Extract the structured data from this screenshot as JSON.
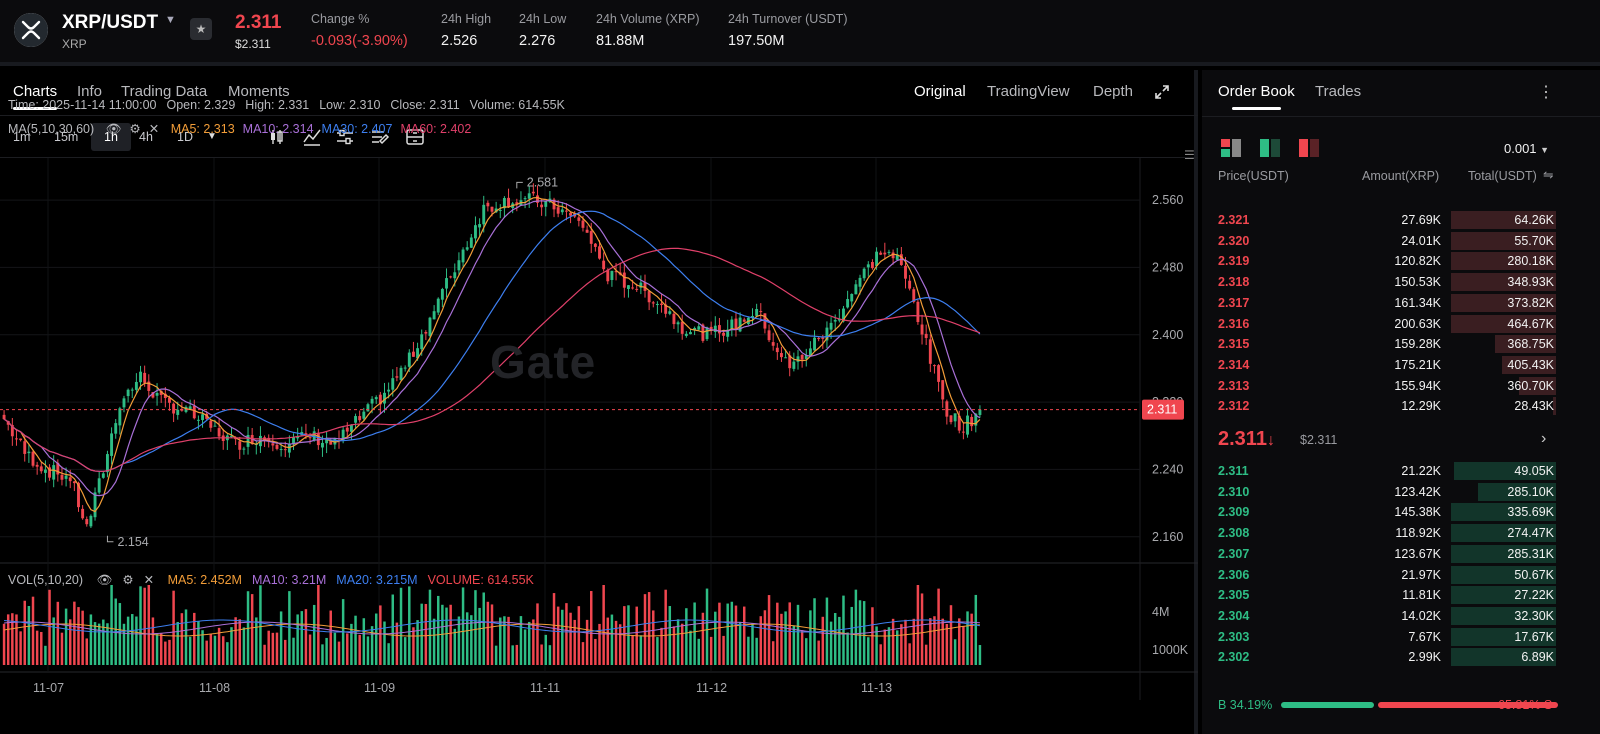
{
  "header": {
    "pair": "XRP/USDT",
    "base": "XRP",
    "last_price": "2.311",
    "last_price_usd": "$2.311",
    "stats": [
      {
        "label": "Change %",
        "value": "-0.093(-3.90%)",
        "red": true
      },
      {
        "label": "24h High",
        "value": "2.526"
      },
      {
        "label": "24h Low",
        "value": "2.276"
      },
      {
        "label": "24h Volume (XRP)",
        "value": "81.88M"
      },
      {
        "label": "24h Turnover (USDT)",
        "value": "197.50M"
      }
    ]
  },
  "tabs": [
    "Charts",
    "Info",
    "Trading Data",
    "Moments"
  ],
  "view_tabs": [
    "Original",
    "TradingView",
    "Depth"
  ],
  "intervals": [
    "1m",
    "15m",
    "1h",
    "4h",
    "1D"
  ],
  "info_line": {
    "time": "Time: 2025-11-14 11:00:00",
    "open": "Open: 2.329",
    "high": "High: 2.331",
    "low": "Low: 2.310",
    "close": "Close: 2.311",
    "volume": "Volume: 614.55K"
  },
  "ma_line": {
    "label": "MA(5,10,30,60)",
    "ma5": "MA5: 2.313",
    "ma10": "MA10: 2.314",
    "ma30": "MA30: 2.407",
    "ma60": "MA60: 2.402"
  },
  "vol_line": {
    "label": "VOL(5,10,20)",
    "ma5": "MA5: 2.452M",
    "ma10": "MA10: 3.21M",
    "ma20": "MA20: 3.215M",
    "volume": "VOLUME: 614.55K"
  },
  "watermark": "Gate",
  "colors": {
    "up": "#2ebd85",
    "down": "#f0464f",
    "ma5": "#f29d38",
    "ma10": "#a970d8",
    "ma30": "#3d7ff0",
    "ma60": "#e0406a"
  },
  "chart_data": {
    "type": "candlestick",
    "y_ticks": [
      "2.560",
      "2.480",
      "2.400",
      "2.320",
      "2.240",
      "2.160"
    ],
    "ylim": [
      2.13,
      2.61
    ],
    "x_ticks": [
      "11-07",
      "11-08",
      "11-09",
      "11-11",
      "11-12",
      "11-13"
    ],
    "vol_ticks": [
      "4M",
      "1000K"
    ],
    "current_price_label": "2.311",
    "current_price": 2.311,
    "high_marker": "2.581",
    "high_value": 2.581,
    "low_marker": "2.154",
    "low_value": 2.154,
    "price_anchors": [
      [
        0,
        2.3
      ],
      [
        5,
        2.26
      ],
      [
        10,
        2.24
      ],
      [
        16,
        2.23
      ],
      [
        20,
        2.17
      ],
      [
        24,
        2.24
      ],
      [
        28,
        2.32
      ],
      [
        33,
        2.35
      ],
      [
        38,
        2.32
      ],
      [
        44,
        2.31
      ],
      [
        50,
        2.29
      ],
      [
        56,
        2.27
      ],
      [
        62,
        2.28
      ],
      [
        68,
        2.27
      ],
      [
        74,
        2.28
      ],
      [
        80,
        2.27
      ],
      [
        86,
        2.3
      ],
      [
        92,
        2.33
      ],
      [
        98,
        2.37
      ],
      [
        104,
        2.43
      ],
      [
        110,
        2.49
      ],
      [
        116,
        2.55
      ],
      [
        122,
        2.56
      ],
      [
        128,
        2.56
      ],
      [
        134,
        2.55
      ],
      [
        140,
        2.53
      ],
      [
        146,
        2.47
      ],
      [
        152,
        2.46
      ],
      [
        158,
        2.44
      ],
      [
        164,
        2.41
      ],
      [
        170,
        2.4
      ],
      [
        176,
        2.41
      ],
      [
        182,
        2.43
      ],
      [
        186,
        2.39
      ],
      [
        190,
        2.36
      ],
      [
        196,
        2.39
      ],
      [
        200,
        2.41
      ],
      [
        206,
        2.46
      ],
      [
        212,
        2.5
      ],
      [
        216,
        2.49
      ],
      [
        220,
        2.44
      ],
      [
        224,
        2.37
      ],
      [
        228,
        2.31
      ],
      [
        232,
        2.29
      ],
      [
        236,
        2.31
      ]
    ],
    "n_candles": 237
  },
  "orderbook": {
    "tabs": [
      "Order Book",
      "Trades"
    ],
    "precision": "0.001",
    "headers": [
      "Price(USDT)",
      "Amount(XRP)",
      "Total(USDT)"
    ],
    "asks": [
      {
        "price": "2.321",
        "amount": "27.69K",
        "total": "64.26K",
        "depth": 0.31
      },
      {
        "price": "2.320",
        "amount": "24.01K",
        "total": "55.70K",
        "depth": 0.31
      },
      {
        "price": "2.319",
        "amount": "120.82K",
        "total": "280.18K",
        "depth": 0.31
      },
      {
        "price": "2.318",
        "amount": "150.53K",
        "total": "348.93K",
        "depth": 0.31
      },
      {
        "price": "2.317",
        "amount": "161.34K",
        "total": "373.82K",
        "depth": 0.31
      },
      {
        "price": "2.316",
        "amount": "200.63K",
        "total": "464.67K",
        "depth": 0.31
      },
      {
        "price": "2.315",
        "amount": "159.28K",
        "total": "368.75K",
        "depth": 0.18
      },
      {
        "price": "2.314",
        "amount": "175.21K",
        "total": "405.43K",
        "depth": 0.16
      },
      {
        "price": "2.313",
        "amount": "155.94K",
        "total": "360.70K",
        "depth": 0.11
      },
      {
        "price": "2.312",
        "amount": "12.29K",
        "total": "28.43K",
        "depth": 0.01
      }
    ],
    "mid_price": "2.311",
    "mid_arrow": "↓",
    "mid_usd": "$2.311",
    "bids": [
      {
        "price": "2.311",
        "amount": "21.22K",
        "total": "49.05K",
        "depth": 0.3
      },
      {
        "price": "2.310",
        "amount": "123.42K",
        "total": "285.10K",
        "depth": 0.23
      },
      {
        "price": "2.309",
        "amount": "145.38K",
        "total": "335.69K",
        "depth": 0.31
      },
      {
        "price": "2.308",
        "amount": "118.92K",
        "total": "274.47K",
        "depth": 0.31
      },
      {
        "price": "2.307",
        "amount": "123.67K",
        "total": "285.31K",
        "depth": 0.31
      },
      {
        "price": "2.306",
        "amount": "21.97K",
        "total": "50.67K",
        "depth": 0.31
      },
      {
        "price": "2.305",
        "amount": "11.81K",
        "total": "27.22K",
        "depth": 0.31
      },
      {
        "price": "2.304",
        "amount": "14.02K",
        "total": "32.30K",
        "depth": 0.31
      },
      {
        "price": "2.303",
        "amount": "7.67K",
        "total": "17.67K",
        "depth": 0.31
      },
      {
        "price": "2.302",
        "amount": "2.99K",
        "total": "6.89K",
        "depth": 0.31
      }
    ],
    "buy_label": "B 34.19%",
    "sell_label": "65.81% S",
    "buy_ratio": 0.3419
  }
}
